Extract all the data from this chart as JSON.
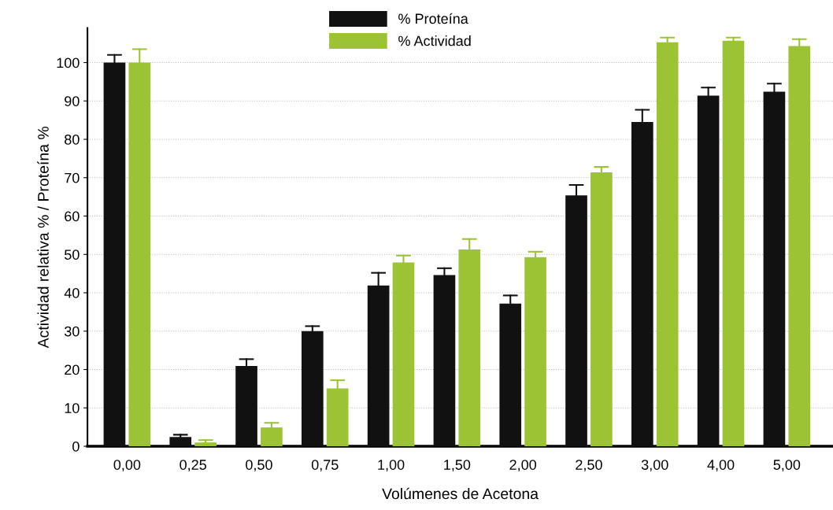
{
  "chart_data": {
    "type": "bar",
    "xlabel": "Volúmenes de Acetona",
    "ylabel": "Actividad relativa % / Proteína %",
    "categories": [
      "0,00",
      "0,25",
      "0,50",
      "0,75",
      "1,00",
      "1,50",
      "2,00",
      "2,50",
      "3,00",
      "4,00",
      "5,00"
    ],
    "series": [
      {
        "name": "% Proteína",
        "color": "#111111",
        "values": [
          100,
          2.4,
          20.9,
          30,
          41.9,
          44.6,
          37.2,
          65.4,
          84.5,
          91.4,
          92.4
        ],
        "errors": [
          [
            100,
            102
          ],
          [
            2.4,
            3
          ],
          [
            20.9,
            22.7
          ],
          [
            30,
            31.3
          ],
          [
            41.9,
            45.2
          ],
          [
            44.6,
            46.4
          ],
          [
            37.2,
            39.3
          ],
          [
            65.4,
            68.1
          ],
          [
            84.5,
            87.7
          ],
          [
            91.4,
            93.5
          ],
          [
            92.4,
            94.5
          ]
        ]
      },
      {
        "name": "% Actividad",
        "color": "#9cc333",
        "values": [
          100,
          1,
          4.9,
          15.1,
          47.9,
          51.3,
          49.3,
          71.4,
          105.3,
          105.7,
          104.3
        ],
        "errors": [
          [
            100,
            103.5
          ],
          [
            1,
            1.6
          ],
          [
            4.9,
            6.1
          ],
          [
            15.1,
            17.2
          ],
          [
            47.9,
            49.7
          ],
          [
            51.3,
            54
          ],
          [
            49.3,
            50.7
          ],
          [
            71.4,
            72.8
          ],
          [
            105.3,
            106.5
          ],
          [
            105.7,
            106.5
          ],
          [
            104.3,
            106.1
          ]
        ]
      }
    ],
    "ylim": [
      0,
      109
    ],
    "yticks": [
      0,
      10,
      20,
      30,
      40,
      50,
      60,
      70,
      80,
      90,
      100
    ],
    "grid": "y",
    "legend": "top"
  }
}
